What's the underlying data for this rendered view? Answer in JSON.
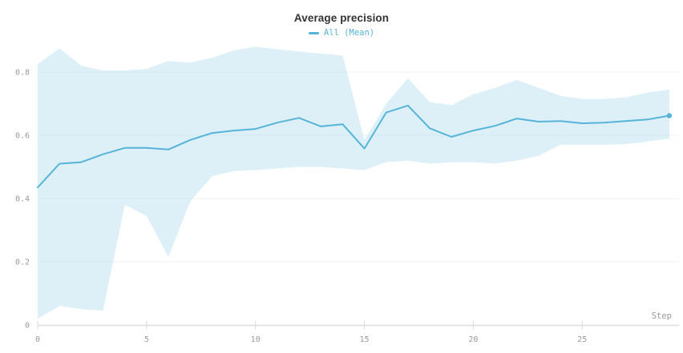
{
  "header": {
    "title": "Average precision"
  },
  "legend": {
    "label": "All (Mean)"
  },
  "chart_data": {
    "type": "line",
    "title": "Average precision",
    "xlabel": "Step",
    "ylabel": "",
    "grid": "horizontal",
    "legend_position": "top-center",
    "x_ticks": [
      0,
      5,
      10,
      15,
      20,
      25
    ],
    "y_ticks": [
      0,
      0.2,
      0.4,
      0.6,
      0.8
    ],
    "y_tick_labels": [
      "0",
      "0.2",
      "0.4",
      "0.6",
      "0.8"
    ],
    "xlim": [
      0,
      29.4
    ],
    "ylim": [
      0,
      0.9
    ],
    "series": [
      {
        "name": "All (Mean)",
        "x": [
          0,
          1,
          2,
          3,
          4,
          5,
          6,
          7,
          8,
          9,
          10,
          11,
          12,
          13,
          14,
          15,
          16,
          17,
          18,
          19,
          20,
          21,
          22,
          23,
          24,
          25,
          26,
          27,
          28,
          29
        ],
        "values": [
          0.435,
          0.51,
          0.515,
          0.54,
          0.56,
          0.56,
          0.555,
          0.585,
          0.607,
          0.615,
          0.62,
          0.64,
          0.655,
          0.628,
          0.635,
          0.558,
          0.672,
          0.694,
          0.622,
          0.595,
          0.615,
          0.63,
          0.653,
          0.643,
          0.645,
          0.638,
          0.64,
          0.645,
          0.65,
          0.662
        ]
      }
    ],
    "band": {
      "name": "min-max envelope",
      "lower": [
        0.02,
        0.06,
        0.05,
        0.045,
        0.38,
        0.345,
        0.215,
        0.39,
        0.47,
        0.487,
        0.49,
        0.495,
        0.5,
        0.5,
        0.495,
        0.49,
        0.515,
        0.52,
        0.51,
        0.515,
        0.515,
        0.51,
        0.52,
        0.535,
        0.57,
        0.57,
        0.57,
        0.572,
        0.58,
        0.59
      ],
      "upper": [
        0.825,
        0.875,
        0.82,
        0.805,
        0.805,
        0.81,
        0.835,
        0.83,
        0.845,
        0.868,
        0.88,
        0.872,
        0.865,
        0.858,
        0.853,
        0.585,
        0.7,
        0.78,
        0.705,
        0.695,
        0.73,
        0.75,
        0.775,
        0.75,
        0.725,
        0.715,
        0.715,
        0.72,
        0.735,
        0.745
      ]
    },
    "colors": {
      "line": "#56b4d8",
      "band_fill": "#aedcee",
      "grid": "#f0f0f0",
      "axis": "#dedede",
      "tick_mark": "#d9d9d9",
      "tick_text": "#999999",
      "title_text": "#333333"
    }
  }
}
